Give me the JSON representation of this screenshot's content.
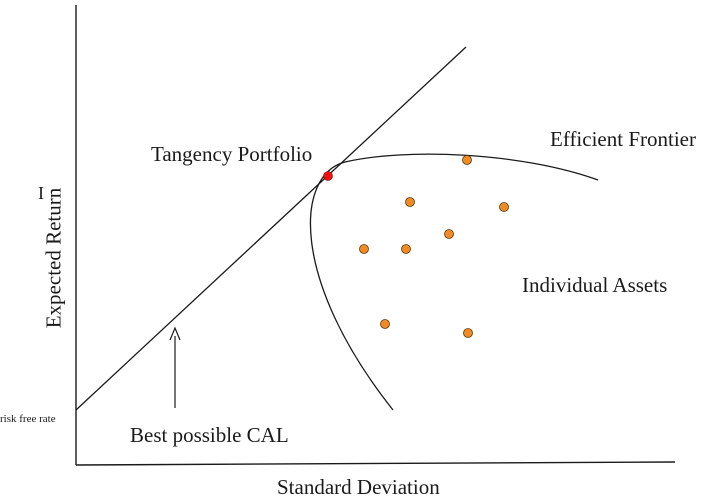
{
  "labels": {
    "tangency": "Tangency Portfolio",
    "efficient_frontier": "Efficient Frontier",
    "individual_assets": "Individual Assets",
    "cal": "Best possible CAL",
    "risk_free": "risk free rate",
    "x_axis": "Standard Deviation",
    "y_axis": "Expected Return",
    "stray_mark": "I"
  },
  "colors": {
    "line": "#1a1a1a",
    "asset_fill": "#f08a24",
    "asset_stroke": "#5a3a10",
    "tangency_fill": "#ee1111"
  },
  "assets_count": 9
}
